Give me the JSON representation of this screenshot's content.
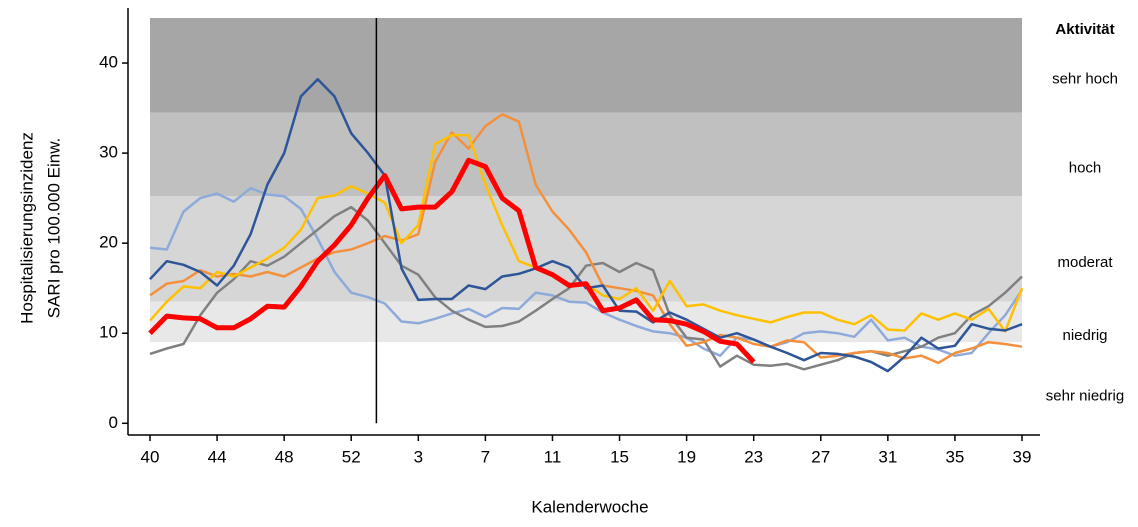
{
  "chart_data": {
    "type": "line",
    "x_label": "Kalenderwoche",
    "y_label": [
      "Hospitalisierungsinzidenz",
      "SARI pro 100.000 Einw."
    ],
    "categories": [
      "40",
      null,
      null,
      null,
      "44",
      null,
      null,
      null,
      "48",
      null,
      null,
      null,
      "52",
      null,
      null,
      null,
      "3",
      null,
      null,
      null,
      "7",
      null,
      null,
      null,
      "11",
      null,
      null,
      null,
      "15",
      null,
      null,
      null,
      "19",
      null,
      null,
      null,
      "23",
      null,
      null,
      null,
      "27",
      null,
      null,
      null,
      "31",
      null,
      null,
      null,
      "35",
      null,
      null,
      null,
      "39"
    ],
    "ylim": [
      -1.3,
      45
    ],
    "yticks": [
      0,
      10,
      20,
      30,
      40
    ],
    "band_title": "Aktivität",
    "bands": [
      {
        "label": "sehr hoch",
        "from": 34.5,
        "to": 45,
        "color": "#a6a6a6"
      },
      {
        "label": "hoch",
        "from": 25.2,
        "to": 34.5,
        "color": "#c0c0c0"
      },
      {
        "label": "moderat",
        "from": 13.5,
        "to": 25.2,
        "color": "#d6d6d6"
      },
      {
        "label": "niedrig",
        "from": 9,
        "to": 13.5,
        "color": "#e8e8e8"
      },
      {
        "label": "sehr niedrig",
        "from": 0,
        "to": 9,
        "color": "#ffffff"
      }
    ],
    "series": [
      {
        "color": "#8eaadb",
        "width": 2.5,
        "values": [
          19.5,
          19.3,
          23.5,
          25,
          25.5,
          24.6,
          26.1,
          25.4,
          25.2,
          23.8,
          20.5,
          16.8,
          14.5,
          14,
          13.3,
          11.3,
          11.1,
          11.6,
          12.2,
          12.7,
          11.8,
          12.8,
          12.7,
          14.5,
          14.2,
          13.5,
          13.4,
          12.3,
          11.5,
          10.8,
          10.2,
          10,
          9.5,
          8.3,
          7.5,
          9.5,
          9.3,
          8.5,
          9,
          10,
          10.2,
          10,
          9.6,
          11.5,
          9.2,
          9.5,
          8.5,
          8.2,
          7.5,
          7.8,
          10,
          12,
          14.8
        ]
      },
      {
        "color": "#808080",
        "width": 2.5,
        "values": [
          7.7,
          8.3,
          8.8,
          12,
          14.5,
          16,
          18,
          17.5,
          18.5,
          20,
          21.5,
          23,
          24,
          22.5,
          20,
          17.5,
          16.5,
          14,
          12.5,
          11.5,
          10.7,
          10.8,
          11.3,
          12.5,
          13.8,
          15,
          17.5,
          17.8,
          16.8,
          17.8,
          17,
          12,
          9.5,
          9.3,
          6.3,
          7.5,
          6.5,
          6.4,
          6.6,
          6,
          6.5,
          7,
          7.8,
          8,
          7.5,
          8,
          8.5,
          9.5,
          10,
          12,
          13,
          14.5,
          16.3
        ]
      },
      {
        "color": "#f4903c",
        "width": 2.5,
        "values": [
          14.2,
          15.5,
          15.8,
          17,
          16.3,
          16.6,
          16.3,
          16.8,
          16.3,
          17.3,
          18.3,
          19,
          19.3,
          20,
          20.8,
          20.3,
          21,
          29,
          32.3,
          30.5,
          33,
          34.3,
          33.5,
          26.5,
          23.5,
          21.5,
          19,
          15.3,
          15,
          14.7,
          14.2,
          11,
          8.6,
          9,
          9.8,
          9.5,
          8.8,
          8.5,
          9.2,
          9,
          7.3,
          7.5,
          7.8,
          8,
          7.8,
          7.2,
          7.5,
          6.7,
          7.8,
          8.3,
          9,
          8.8,
          8.5
        ]
      },
      {
        "color": "#ffc000",
        "width": 2.5,
        "values": [
          11.4,
          13.5,
          15.2,
          15,
          16.8,
          16.3,
          17.3,
          18.3,
          19.5,
          21.5,
          25,
          25.3,
          26.3,
          25.5,
          24.5,
          20,
          22,
          31,
          32,
          32,
          26.5,
          22,
          18,
          17.3,
          16.5,
          15.3,
          15.5,
          14.2,
          13.8,
          15,
          12.5,
          15.8,
          13,
          13.2,
          12.5,
          12,
          11.6,
          11.2,
          11.8,
          12.3,
          12.3,
          11.5,
          11,
          12,
          10.4,
          10.3,
          12.2,
          11.5,
          12.2,
          11.5,
          12.7,
          10.2,
          15
        ]
      },
      {
        "color": "#2e5597",
        "width": 2.5,
        "values": [
          16,
          18,
          17.6,
          16.8,
          15.3,
          17.5,
          21,
          26.5,
          30,
          36.3,
          38.2,
          36.3,
          32.2,
          30,
          27.5,
          17.2,
          13.7,
          13.8,
          13.8,
          15.3,
          14.9,
          16.3,
          16.6,
          17.2,
          18,
          17.3,
          15,
          15.3,
          12.5,
          12.4,
          11.2,
          12.3,
          11.5,
          10.5,
          9.5,
          10,
          9.3,
          8.5,
          7.8,
          7,
          7.8,
          7.7,
          7.4,
          6.8,
          5.8,
          7.4,
          9.5,
          8.3,
          8.6,
          11,
          10.5,
          10.3,
          11
        ]
      },
      {
        "color": "#ff0000",
        "width": 5,
        "values": [
          10,
          11.9,
          11.7,
          11.6,
          10.6,
          10.6,
          11.6,
          13,
          12.9,
          15.2,
          18,
          19.8,
          22,
          25,
          27.5,
          23.8,
          24,
          24,
          25.7,
          29.2,
          28.5,
          25,
          23.6,
          17.3,
          16.5,
          15.3,
          15.5,
          12.5,
          12.8,
          13.7,
          11.5,
          11.4,
          11,
          10.2,
          9.1,
          8.8,
          6.8,
          null,
          null,
          null,
          null,
          null,
          null,
          null,
          null,
          null,
          null,
          null,
          null,
          null,
          null,
          null,
          null
        ]
      }
    ]
  }
}
